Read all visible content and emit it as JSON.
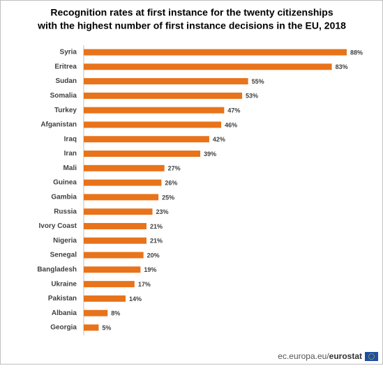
{
  "chart_data": {
    "type": "bar",
    "orientation": "horizontal",
    "title": [
      "Recognition rates at first instance for the twenty citizenships",
      "with the highest number of first instance decisions in the EU, 2018"
    ],
    "categories": [
      "Syria",
      "Eritrea",
      "Sudan",
      "Somalia",
      "Turkey",
      "Afganistan",
      "Iraq",
      "Iran",
      "Mali",
      "Guinea",
      "Gambia",
      "Russia",
      "Ivory Coast",
      "Nigeria",
      "Senegal",
      "Bangladesh",
      "Ukraine",
      "Pakistan",
      "Albania",
      "Georgia"
    ],
    "values": [
      88,
      83,
      55,
      53,
      47,
      46,
      42,
      39,
      27,
      26,
      25,
      23,
      21,
      21,
      20,
      19,
      17,
      14,
      8,
      5
    ],
    "value_labels": [
      "88%",
      "83%",
      "55%",
      "53%",
      "47%",
      "46%",
      "42%",
      "39%",
      "27%",
      "26%",
      "25%",
      "23%",
      "21%",
      "21%",
      "20%",
      "19%",
      "17%",
      "14%",
      "8%",
      "5%"
    ],
    "color": "#e8731a",
    "source": [
      "ec.europa.eu/",
      "eurostat"
    ]
  }
}
